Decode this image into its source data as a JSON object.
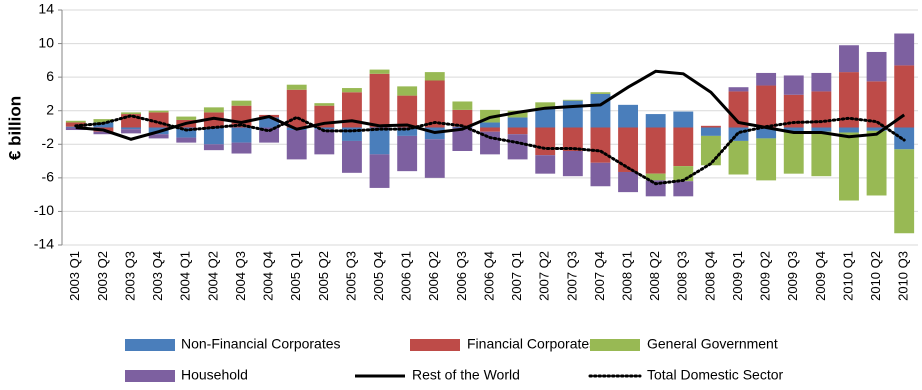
{
  "chart_data": {
    "type": "bar",
    "stacked": true,
    "y_label": "€ billion",
    "categories": [
      "2003 Q1",
      "2003 Q2",
      "2003 Q3",
      "2003 Q4",
      "2004 Q1",
      "2004 Q2",
      "2004 Q3",
      "2004 Q4",
      "2005 Q1",
      "2005 Q2",
      "2005 Q3",
      "2005 Q4",
      "2006 Q1",
      "2006 Q2",
      "2006 Q3",
      "2006 Q4",
      "2007 Q1",
      "2007 Q2",
      "2007 Q3",
      "2007 Q4",
      "2008 Q1",
      "2008 Q2",
      "2008 Q3",
      "2008 Q4",
      "2009 Q1",
      "2009 Q2",
      "2009 Q3",
      "2009 Q4",
      "2010 Q1",
      "2010 Q2",
      "2010 Q3"
    ],
    "series": [
      {
        "name": "Non-Financial Corporates",
        "type": "bar",
        "color": "#4a7ebb",
        "values": [
          0.1,
          0.6,
          -0.2,
          -0.8,
          -1.2,
          -2.0,
          -1.8,
          1.2,
          -0.3,
          -0.2,
          -1.6,
          -3.2,
          -1.0,
          -1.4,
          0.1,
          0.6,
          1.2,
          2.2,
          3.2,
          4.0,
          2.7,
          1.6,
          1.9,
          -1.0,
          -1.6,
          -1.3,
          -0.5,
          -0.5,
          -0.6,
          -0.4,
          -2.6
        ]
      },
      {
        "name": "Financial Corporates",
        "type": "bar",
        "color": "#be4b48",
        "values": [
          0.5,
          -0.5,
          1.6,
          1.8,
          0.9,
          1.8,
          2.6,
          0.3,
          4.5,
          2.6,
          4.2,
          6.4,
          3.8,
          5.6,
          2.0,
          -0.5,
          -0.8,
          -3.3,
          -2.8,
          -4.2,
          -5.3,
          -5.5,
          -4.6,
          0.2,
          4.3,
          5.0,
          3.9,
          4.3,
          6.6,
          5.5,
          7.4
        ]
      },
      {
        "name": "General Government",
        "type": "bar",
        "color": "#98b954",
        "values": [
          0.2,
          0.4,
          0.2,
          0.2,
          0.4,
          0.6,
          0.6,
          0.0,
          0.6,
          0.3,
          0.5,
          0.5,
          1.1,
          1.0,
          1.0,
          1.5,
          0.8,
          0.8,
          0.1,
          0.2,
          0.0,
          -0.8,
          -1.8,
          -3.5,
          -4.0,
          -5.0,
          -5.0,
          -5.3,
          -8.1,
          -7.7,
          -10.0
        ]
      },
      {
        "name": "Household",
        "type": "bar",
        "color": "#7d60a0",
        "values": [
          -0.3,
          -0.3,
          -0.5,
          -0.5,
          -0.6,
          -0.7,
          -1.3,
          -1.8,
          -3.5,
          -3.0,
          -3.8,
          -4.0,
          -4.2,
          -4.6,
          -2.8,
          -2.7,
          -3.0,
          -2.2,
          -3.0,
          -2.8,
          -2.4,
          -1.9,
          -1.8,
          0.0,
          0.5,
          1.5,
          2.3,
          2.2,
          3.2,
          3.5,
          3.8
        ]
      },
      {
        "name": "Rest of the World",
        "type": "line",
        "color": "#000000",
        "dash": "solid",
        "values": [
          0,
          -0.3,
          -1.4,
          -0.5,
          0.5,
          1.1,
          0.6,
          1.3,
          -0.2,
          0.5,
          0.8,
          0.2,
          0.3,
          -0.6,
          -0.2,
          1.2,
          1.8,
          2.3,
          2.5,
          2.7,
          4.8,
          6.7,
          6.4,
          4.2,
          0.6,
          0,
          -0.6,
          -0.6,
          -1.1,
          -0.8,
          1.5
        ]
      },
      {
        "name": "Total Domestic Sector",
        "type": "line",
        "color": "#000000",
        "dash": "dotted",
        "values": [
          0.2,
          0.5,
          1.4,
          0.6,
          -0.3,
          0.0,
          0.3,
          -0.4,
          1.2,
          -0.4,
          -0.4,
          -0.2,
          -0.2,
          0.6,
          0.2,
          -1.2,
          -1.8,
          -2.5,
          -2.5,
          -2.8,
          -4.8,
          -6.7,
          -6.3,
          -4.3,
          -0.6,
          0.1,
          0.6,
          0.7,
          1.1,
          0.7,
          -1.5
        ]
      }
    ],
    "ylim": [
      -14,
      14
    ],
    "yticks": [
      -14,
      -10,
      -6,
      -2,
      2,
      6,
      10,
      14
    ],
    "grid": true,
    "legend": "bottom"
  }
}
